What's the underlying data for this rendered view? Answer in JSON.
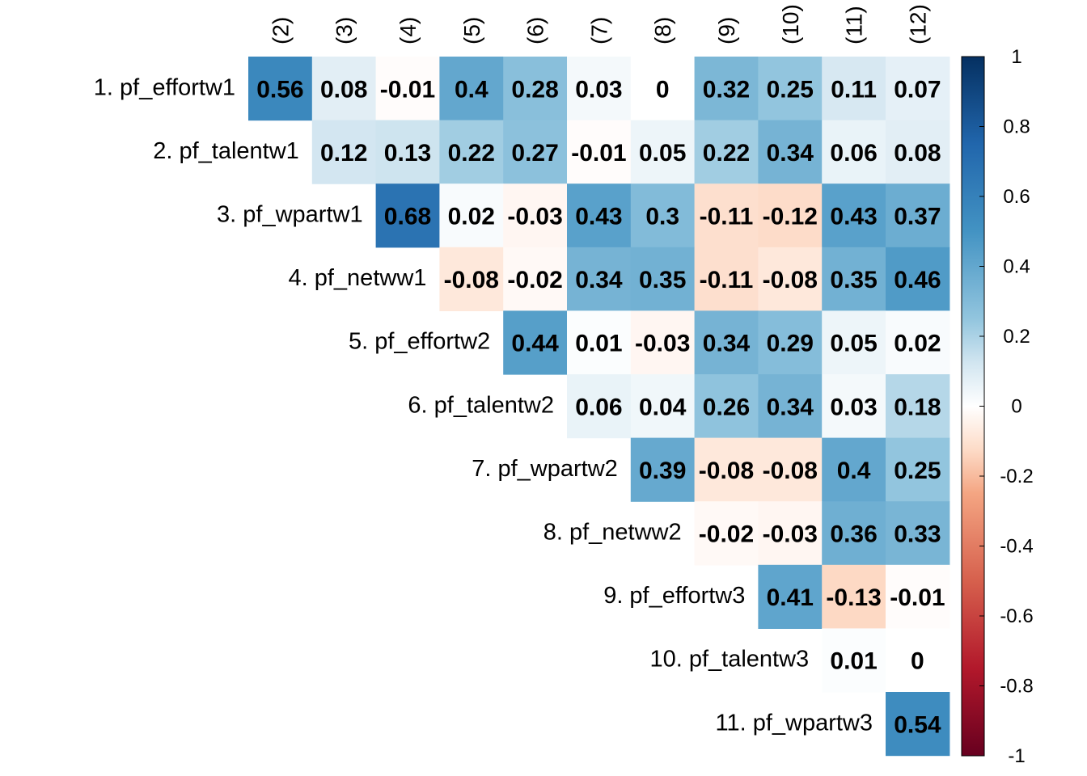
{
  "chart_data": {
    "type": "heatmap",
    "title": "",
    "row_labels": [
      "1. pf_effortw1",
      "2. pf_talentw1",
      "3. pf_wpartw1",
      "4. pf_netww1",
      "5. pf_effortw2",
      "6. pf_talentw2",
      "7. pf_wpartw2",
      "8. pf_netww2",
      "9. pf_effortw3",
      "10. pf_talentw3",
      "11. pf_wpartw3"
    ],
    "col_labels": [
      "(2)",
      "(3)",
      "(4)",
      "(5)",
      "(6)",
      "(7)",
      "(8)",
      "(9)",
      "(10)",
      "(11)",
      "(12)"
    ],
    "cell_labels": [
      [
        "0.56",
        "0.08",
        "-0.01",
        "0.4",
        "0.28",
        "0.03",
        "0",
        "0.32",
        "0.25",
        "0.11",
        "0.07"
      ],
      [
        "0.12",
        "0.13",
        "0.22",
        "0.27",
        "-0.01",
        "0.05",
        "0.22",
        "0.34",
        "0.06",
        "0.08"
      ],
      [
        "0.68",
        "0.02",
        "-0.03",
        "0.43",
        "0.3",
        "-0.11",
        "-0.12",
        "0.43",
        "0.37"
      ],
      [
        "-0.08",
        "-0.02",
        "0.34",
        "0.35",
        "-0.11",
        "-0.08",
        "0.35",
        "0.46"
      ],
      [
        "0.44",
        "0.01",
        "-0.03",
        "0.34",
        "0.29",
        "0.05",
        "0.02"
      ],
      [
        "0.06",
        "0.04",
        "0.26",
        "0.34",
        "0.03",
        "0.18"
      ],
      [
        "0.39",
        "-0.08",
        "-0.08",
        "0.4",
        "0.25"
      ],
      [
        "-0.02",
        "-0.03",
        "0.36",
        "0.33"
      ],
      [
        "0.41",
        "-0.13",
        "-0.01"
      ],
      [
        "0.01",
        "0"
      ],
      [
        "0.54"
      ]
    ],
    "values": [
      [
        0.56,
        0.08,
        -0.01,
        0.4,
        0.28,
        0.03,
        0,
        0.32,
        0.25,
        0.11,
        0.07
      ],
      [
        0.12,
        0.13,
        0.22,
        0.27,
        -0.01,
        0.05,
        0.22,
        0.34,
        0.06,
        0.08
      ],
      [
        0.68,
        0.02,
        -0.03,
        0.43,
        0.3,
        -0.11,
        -0.12,
        0.43,
        0.37
      ],
      [
        -0.08,
        -0.02,
        0.34,
        0.35,
        -0.11,
        -0.08,
        0.35,
        0.46
      ],
      [
        0.44,
        0.01,
        -0.03,
        0.34,
        0.29,
        0.05,
        0.02
      ],
      [
        0.06,
        0.04,
        0.26,
        0.34,
        0.03,
        0.18
      ],
      [
        0.39,
        -0.08,
        -0.08,
        0.4,
        0.25
      ],
      [
        -0.02,
        -0.03,
        0.36,
        0.33
      ],
      [
        0.41,
        -0.13,
        -0.01
      ],
      [
        0.01,
        0
      ],
      [
        0.54
      ]
    ],
    "layout": "upper-triangular",
    "color_scale": {
      "range": [
        -1,
        1
      ],
      "stops": [
        {
          "value": -1,
          "color": "#67001f"
        },
        {
          "value": -0.75,
          "color": "#b2182b"
        },
        {
          "value": -0.5,
          "color": "#d6604d"
        },
        {
          "value": -0.25,
          "color": "#f4a582"
        },
        {
          "value": -0.125,
          "color": "#fddbc7"
        },
        {
          "value": 0,
          "color": "#ffffff"
        },
        {
          "value": 0.125,
          "color": "#d1e5f0"
        },
        {
          "value": 0.25,
          "color": "#92c5de"
        },
        {
          "value": 0.5,
          "color": "#4393c3"
        },
        {
          "value": 0.75,
          "color": "#2166ac"
        },
        {
          "value": 1,
          "color": "#053061"
        }
      ],
      "tick_labels": [
        "1",
        "0.8",
        "0.6",
        "0.4",
        "0.2",
        "0",
        "-0.2",
        "-0.4",
        "-0.6",
        "-0.8",
        "-1"
      ],
      "tick_values": [
        1,
        0.8,
        0.6,
        0.4,
        0.2,
        0,
        -0.2,
        -0.4,
        -0.6,
        -0.8,
        -1
      ],
      "legend_position": "right"
    },
    "grid": false
  }
}
